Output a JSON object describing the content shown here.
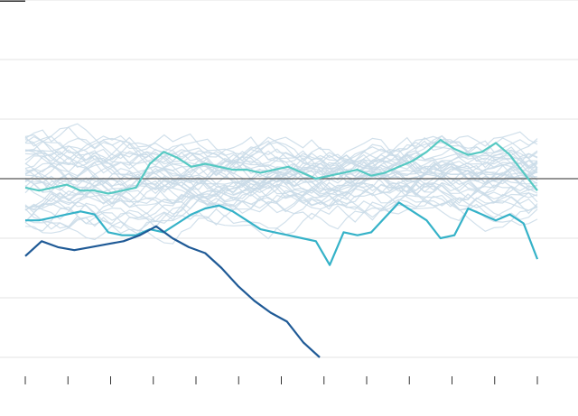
{
  "chart_data": {
    "type": "line",
    "title": "",
    "xlabel": "",
    "ylabel": "",
    "x_ticks": 13,
    "grid": true,
    "ylim": [
      -3,
      3
    ],
    "reference_line": 0,
    "background_series_count": 40,
    "background_color": "#c9dbe8",
    "highlight_series": [
      {
        "color": "#56c9c3",
        "values": [
          -0.15,
          -0.2,
          -0.15,
          -0.1,
          -0.2,
          -0.2,
          -0.25,
          -0.2,
          -0.15,
          0.25,
          0.45,
          0.35,
          0.2,
          0.25,
          0.2,
          0.15,
          0.15,
          0.1,
          0.15,
          0.2,
          0.1,
          0.0,
          0.05,
          0.1,
          0.15,
          0.05,
          0.1,
          0.2,
          0.3,
          0.45,
          0.65,
          0.5,
          0.4,
          0.45,
          0.6,
          0.4,
          0.1,
          -0.2
        ]
      },
      {
        "color": "#35b2c8",
        "values": [
          -0.7,
          -0.7,
          -0.65,
          -0.6,
          -0.55,
          -0.6,
          -0.9,
          -0.95,
          -0.95,
          -0.85,
          -0.9,
          -0.75,
          -0.6,
          -0.5,
          -0.45,
          -0.55,
          -0.7,
          -0.85,
          -0.9,
          -0.95,
          -1.0,
          -1.05,
          -1.45,
          -0.9,
          -0.95,
          -0.9,
          -0.65,
          -0.4,
          -0.55,
          -0.7,
          -1.0,
          -0.95,
          -0.5,
          -0.6,
          -0.7,
          -0.6,
          -0.75,
          -1.35
        ]
      },
      {
        "color": "#1f5a96",
        "values": [
          -1.3,
          -1.05,
          -1.15,
          -1.2,
          -1.15,
          -1.1,
          -1.05,
          -0.95,
          -0.8,
          -1.0,
          -1.15,
          -1.25,
          -1.5,
          -1.8,
          -2.05,
          -2.25,
          -2.4,
          -2.75,
          -3.0
        ]
      }
    ]
  }
}
